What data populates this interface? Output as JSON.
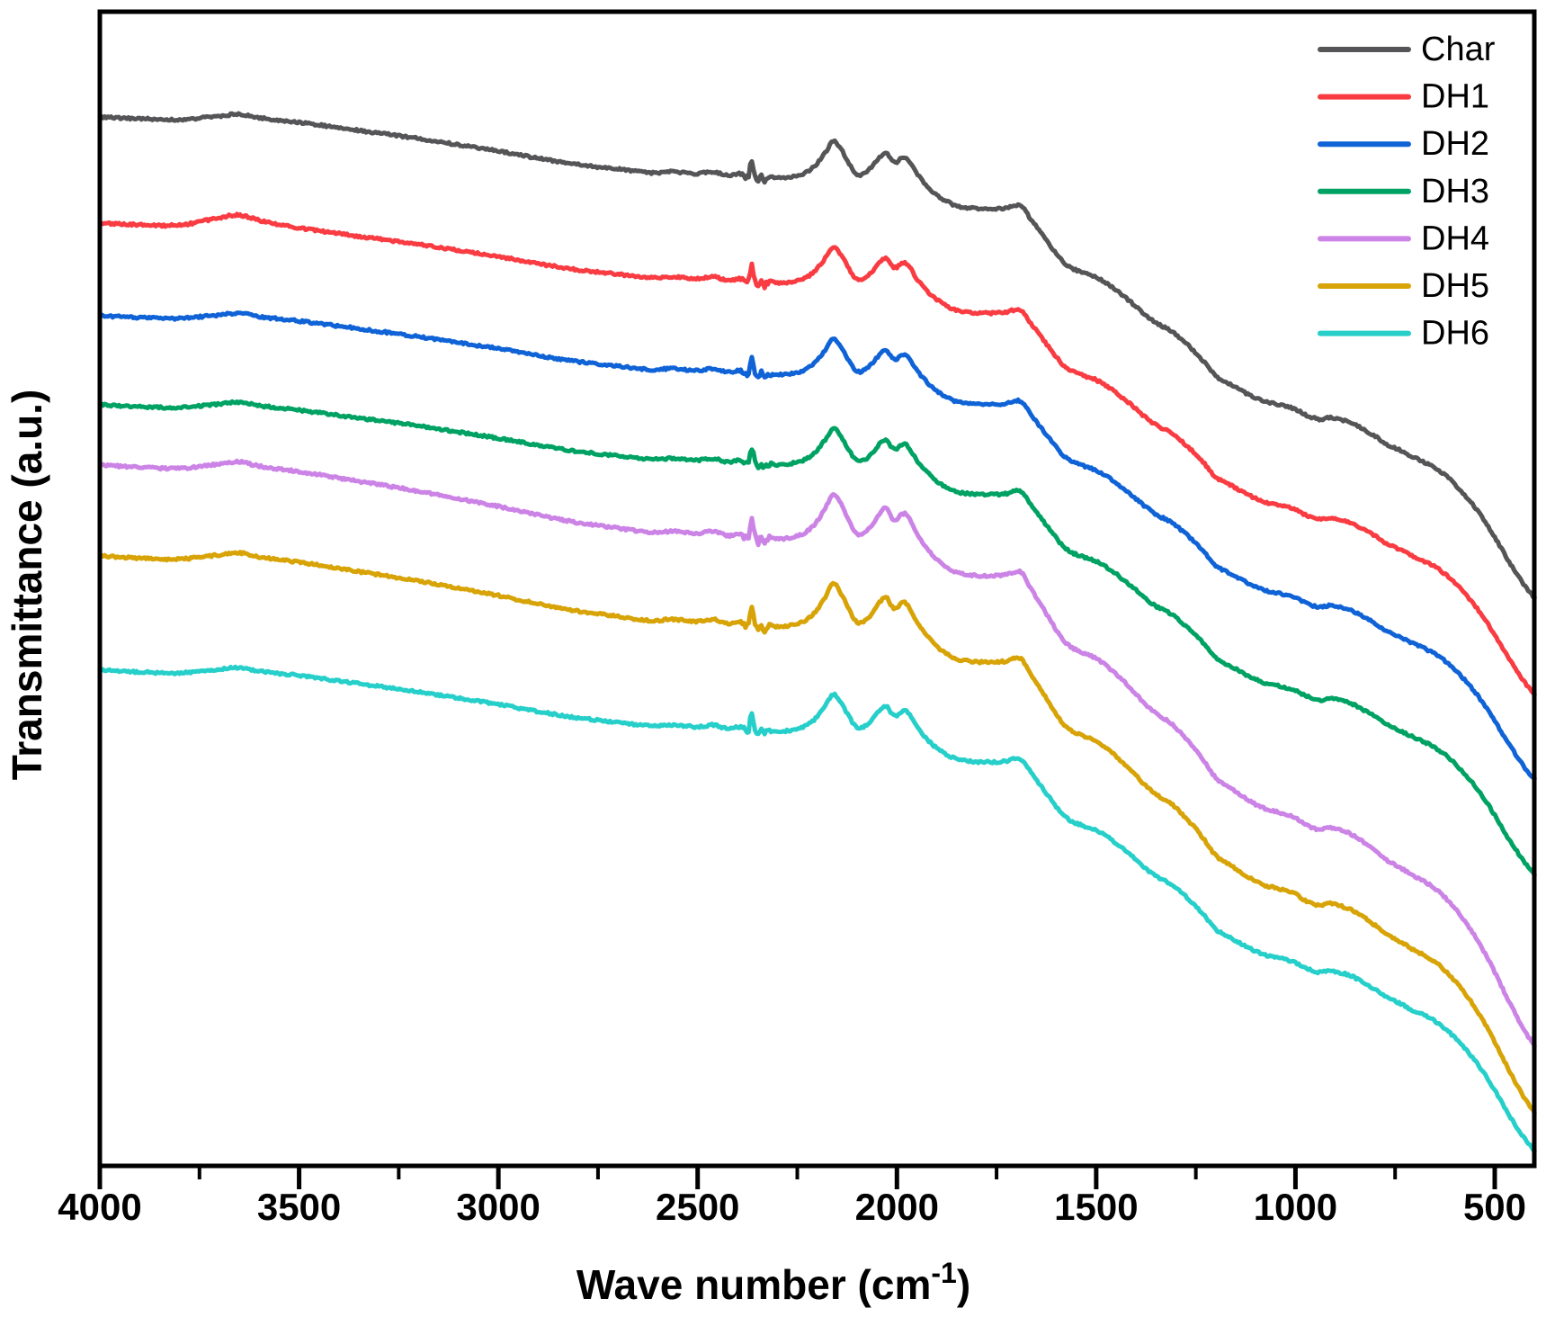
{
  "axes": {
    "x_label_main": "Wave number (cm",
    "x_label_sup": "-1",
    "x_label_close": ")",
    "y_label": "Transmittance (a.u.)",
    "x_major_ticks": [
      4000,
      3500,
      3000,
      2500,
      2000,
      1500,
      1000,
      500
    ],
    "x_minor_ticks": [
      3750,
      3250,
      2750,
      2250,
      1750,
      1250,
      750
    ],
    "x_range_max": 4000,
    "x_range_min": 400,
    "axis_color": "#000000"
  },
  "legend": {
    "entries": [
      {
        "label": "Char",
        "color": "#555557"
      },
      {
        "label": "DH1",
        "color": "#f93b42"
      },
      {
        "label": "DH2",
        "color": "#0f63d6"
      },
      {
        "label": "DH3",
        "color": "#00a263"
      },
      {
        "label": "DH4",
        "color": "#cc83e6"
      },
      {
        "label": "DH5",
        "color": "#d7a306"
      },
      {
        "label": "DH6",
        "color": "#26cfc9"
      }
    ]
  },
  "chart_data": {
    "type": "line",
    "title": "",
    "xlabel": "Wave number (cm^-1)",
    "ylabel": "Transmittance (a.u.)",
    "x_axis_reversed": true,
    "x_range": [
      4000,
      400
    ],
    "y_units": "arbitrary (a.u.), no y ticks shown",
    "grid": false,
    "legend_position": "top-right-inside",
    "base_start_au": 1166,
    "base_points": [
      [
        4000,
        1166
      ],
      [
        3900,
        1164
      ],
      [
        3800,
        1163
      ],
      [
        3700,
        1167
      ],
      [
        3650,
        1169
      ],
      [
        3600,
        1165
      ],
      [
        3500,
        1160
      ],
      [
        3400,
        1154
      ],
      [
        3300,
        1148
      ],
      [
        3200,
        1142
      ],
      [
        3100,
        1135
      ],
      [
        3000,
        1128
      ],
      [
        2900,
        1120
      ],
      [
        2800,
        1113
      ],
      [
        2700,
        1108
      ],
      [
        2620,
        1104
      ],
      [
        2560,
        1105
      ],
      [
        2500,
        1103
      ],
      [
        2460,
        1105
      ],
      [
        2425,
        1101
      ],
      [
        2395,
        1103
      ],
      [
        2372,
        1100
      ],
      [
        2365,
        1118
      ],
      [
        2357,
        1103
      ],
      [
        2349,
        1094
      ],
      [
        2341,
        1100
      ],
      [
        2333,
        1095
      ],
      [
        2322,
        1099
      ],
      [
        2300,
        1098
      ],
      [
        2270,
        1099
      ],
      [
        2240,
        1102
      ],
      [
        2210,
        1110
      ],
      [
        2180,
        1126
      ],
      [
        2160,
        1139
      ],
      [
        2140,
        1130
      ],
      [
        2120,
        1114
      ],
      [
        2100,
        1102
      ],
      [
        2080,
        1104
      ],
      [
        2060,
        1112
      ],
      [
        2040,
        1123
      ],
      [
        2025,
        1126
      ],
      [
        2012,
        1117
      ],
      [
        2000,
        1116
      ],
      [
        1990,
        1120
      ],
      [
        1978,
        1121
      ],
      [
        1965,
        1114
      ],
      [
        1950,
        1103
      ],
      [
        1930,
        1092
      ],
      [
        1910,
        1083
      ],
      [
        1890,
        1076
      ],
      [
        1870,
        1071
      ],
      [
        1850,
        1067
      ],
      [
        1820,
        1065
      ],
      [
        1790,
        1064
      ],
      [
        1755,
        1064
      ],
      [
        1725,
        1065
      ],
      [
        1700,
        1068
      ],
      [
        1685,
        1066
      ],
      [
        1665,
        1053
      ],
      [
        1645,
        1041
      ],
      [
        1625,
        1029
      ],
      [
        1605,
        1017
      ],
      [
        1585,
        1006
      ],
      [
        1565,
        999
      ],
      [
        1545,
        995
      ],
      [
        1525,
        992
      ],
      [
        1500,
        988
      ],
      [
        1470,
        980
      ],
      [
        1440,
        970
      ],
      [
        1410,
        959
      ],
      [
        1380,
        947
      ],
      [
        1350,
        937
      ],
      [
        1320,
        930
      ],
      [
        1300,
        924
      ],
      [
        1260,
        908
      ],
      [
        1230,
        894
      ],
      [
        1200,
        878
      ],
      [
        1160,
        868
      ],
      [
        1120,
        858
      ],
      [
        1080,
        850
      ],
      [
        1040,
        846
      ],
      [
        1000,
        841
      ],
      [
        970,
        834
      ],
      [
        940,
        830
      ],
      [
        915,
        832
      ],
      [
        890,
        830
      ],
      [
        860,
        826
      ],
      [
        830,
        819
      ],
      [
        800,
        811
      ],
      [
        770,
        802
      ],
      [
        740,
        796
      ],
      [
        710,
        789
      ],
      [
        680,
        783
      ],
      [
        650,
        776
      ],
      [
        620,
        766
      ],
      [
        590,
        753
      ],
      [
        560,
        738
      ],
      [
        530,
        720
      ],
      [
        500,
        699
      ],
      [
        470,
        676
      ],
      [
        440,
        655
      ],
      [
        420,
        642
      ],
      [
        400,
        631
      ]
    ],
    "series": [
      {
        "name": "Char",
        "color": "#555557",
        "start_au": 1166,
        "scale": 1.0,
        "seed": 11
      },
      {
        "name": "DH1",
        "color": "#f93b42",
        "start_au": 1048,
        "scale": 0.98,
        "seed": 23,
        "extra_bumps": [
          {
            "center": 3660,
            "sigma": 70,
            "amp": 6
          }
        ]
      },
      {
        "name": "DH2",
        "color": "#0f63d6",
        "start_au": 945,
        "scale": 0.964,
        "seed": 37
      },
      {
        "name": "DH3",
        "color": "#00a263",
        "start_au": 846,
        "scale": 0.977,
        "seed": 49
      },
      {
        "name": "DH4",
        "color": "#cc83e6",
        "start_au": 779,
        "scale": 1.207,
        "seed": 61
      },
      {
        "name": "DH5",
        "color": "#d7a306",
        "start_au": 678,
        "scale": 1.157,
        "seed": 73
      },
      {
        "name": "DH6",
        "color": "#26cfc9",
        "start_au": 551,
        "scale": 1.0,
        "seed": 89
      }
    ],
    "noise_amplitude": 1.25,
    "spike_noise_region": {
      "from": 2392,
      "to": 2312,
      "amplitude": 3.0
    },
    "line_width": 5
  }
}
